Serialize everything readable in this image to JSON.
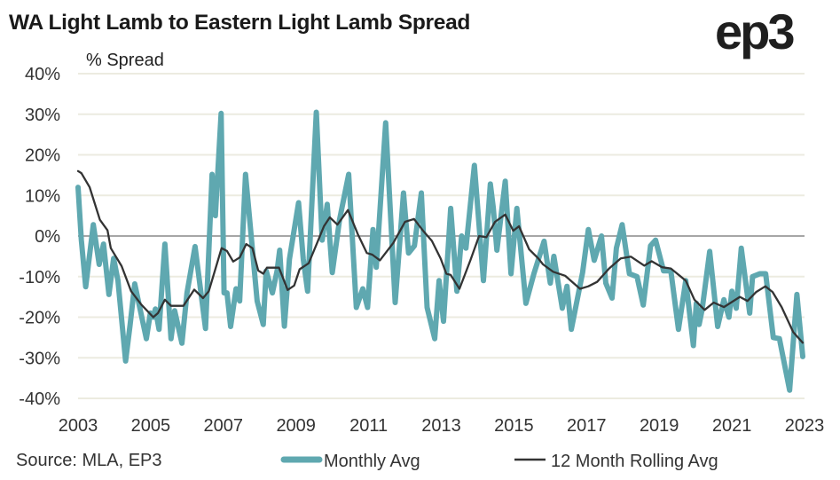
{
  "title": "WA Light Lamb to Eastern Light Lamb Spread",
  "logo": "ep3",
  "source": "Source: MLA, EP3",
  "chart_data": {
    "type": "line",
    "title": "WA Light Lamb to Eastern Light Lamb Spread",
    "ylabel": "% Spread",
    "xlabel": "",
    "xlim": [
      2003,
      2023
    ],
    "ylim": [
      -40,
      40
    ],
    "x_ticks": [
      "2003",
      "2005",
      "2007",
      "2009",
      "2011",
      "2013",
      "2015",
      "2017",
      "2019",
      "2021",
      "2023"
    ],
    "y_ticks": [
      "40%",
      "30%",
      "20%",
      "10%",
      "0%",
      "-10%",
      "-20%",
      "-30%",
      "-40%"
    ],
    "grid": true,
    "legend": "bottom",
    "colors": {
      "monthly": "#5fa8b0",
      "rolling": "#333333",
      "grid": "#ecebe0",
      "zero": "#888888"
    },
    "series": [
      {
        "name": "Monthly Avg",
        "points": [
          [
            2003.0,
            12
          ],
          [
            2003.09,
            -1
          ],
          [
            2003.21,
            -12.5
          ],
          [
            2003.42,
            2.8
          ],
          [
            2003.58,
            -7
          ],
          [
            2003.7,
            -2
          ],
          [
            2003.85,
            -14.4
          ],
          [
            2003.98,
            -5.5
          ],
          [
            2004.1,
            -11
          ],
          [
            2004.31,
            -30.8
          ],
          [
            2004.43,
            -22
          ],
          [
            2004.56,
            -11.8
          ],
          [
            2004.88,
            -25.3
          ],
          [
            2004.99,
            -19
          ],
          [
            2005.07,
            -20
          ],
          [
            2005.13,
            -18
          ],
          [
            2005.23,
            -23
          ],
          [
            2005.39,
            -2
          ],
          [
            2005.56,
            -25.3
          ],
          [
            2005.66,
            -18.4
          ],
          [
            2005.86,
            -26.4
          ],
          [
            2006.0,
            -14
          ],
          [
            2006.22,
            -2.6
          ],
          [
            2006.51,
            -22.8
          ],
          [
            2006.69,
            15.2
          ],
          [
            2006.78,
            5
          ],
          [
            2006.94,
            30.2
          ],
          [
            2007.02,
            -14
          ],
          [
            2007.1,
            -14
          ],
          [
            2007.2,
            -22.3
          ],
          [
            2007.35,
            -13
          ],
          [
            2007.45,
            -16
          ],
          [
            2007.61,
            15.2
          ],
          [
            2007.93,
            -16
          ],
          [
            2008.1,
            -21.8
          ],
          [
            2008.18,
            -8.6
          ],
          [
            2008.35,
            -14
          ],
          [
            2008.48,
            -8.6
          ],
          [
            2008.55,
            -3.5
          ],
          [
            2008.68,
            -22.2
          ],
          [
            2008.82,
            -5.7
          ],
          [
            2009.07,
            8.2
          ],
          [
            2009.2,
            -5.7
          ],
          [
            2009.32,
            -13.6
          ],
          [
            2009.56,
            30.5
          ],
          [
            2009.72,
            -1
          ],
          [
            2009.86,
            7.8
          ],
          [
            2010.0,
            -9
          ],
          [
            2010.2,
            4
          ],
          [
            2010.45,
            15.2
          ],
          [
            2010.66,
            -17.6
          ],
          [
            2010.84,
            -13
          ],
          [
            2010.97,
            -17.6
          ],
          [
            2011.12,
            1.6
          ],
          [
            2011.21,
            -7.7
          ],
          [
            2011.47,
            27.9
          ],
          [
            2011.73,
            -16.4
          ],
          [
            2011.96,
            10.6
          ],
          [
            2012.1,
            -4.2
          ],
          [
            2012.26,
            -2.4
          ],
          [
            2012.45,
            10.6
          ],
          [
            2012.61,
            -17.6
          ],
          [
            2012.82,
            -25.3
          ],
          [
            2012.94,
            -11
          ],
          [
            2013.06,
            -21
          ],
          [
            2013.26,
            6.8
          ],
          [
            2013.43,
            -13.6
          ],
          [
            2013.56,
            0
          ],
          [
            2013.68,
            -3
          ],
          [
            2013.91,
            17.4
          ],
          [
            2014.16,
            -11
          ],
          [
            2014.35,
            12.8
          ],
          [
            2014.43,
            7
          ],
          [
            2014.53,
            -3.5
          ],
          [
            2014.76,
            13.5
          ],
          [
            2014.92,
            -9.3
          ],
          [
            2015.08,
            6.8
          ],
          [
            2015.33,
            -16.6
          ],
          [
            2015.55,
            -9.3
          ],
          [
            2015.83,
            -1.3
          ],
          [
            2016.0,
            -11.6
          ],
          [
            2016.1,
            -5
          ],
          [
            2016.33,
            -17.8
          ],
          [
            2016.46,
            -12.4
          ],
          [
            2016.58,
            -23
          ],
          [
            2016.89,
            -9
          ],
          [
            2017.05,
            1.6
          ],
          [
            2017.21,
            -6
          ],
          [
            2017.41,
            0
          ],
          [
            2017.53,
            -11.6
          ],
          [
            2017.7,
            -15.3
          ],
          [
            2017.82,
            -3
          ],
          [
            2017.98,
            2.8
          ],
          [
            2018.18,
            -9.3
          ],
          [
            2018.39,
            -10
          ],
          [
            2018.56,
            -17
          ],
          [
            2018.76,
            -2.4
          ],
          [
            2018.9,
            -1
          ],
          [
            2019.12,
            -8.6
          ],
          [
            2019.32,
            -8.6
          ],
          [
            2019.53,
            -23
          ],
          [
            2019.73,
            -11
          ],
          [
            2019.94,
            -27
          ],
          [
            2020.02,
            -16.6
          ],
          [
            2020.1,
            -21.8
          ],
          [
            2020.18,
            -18.2
          ],
          [
            2020.39,
            -3.8
          ],
          [
            2020.61,
            -22.3
          ],
          [
            2020.78,
            -15.7
          ],
          [
            2020.92,
            -20
          ],
          [
            2021.0,
            -13.6
          ],
          [
            2021.12,
            -17.8
          ],
          [
            2021.26,
            -3
          ],
          [
            2021.49,
            -19
          ],
          [
            2021.57,
            -10
          ],
          [
            2021.77,
            -9.3
          ],
          [
            2021.93,
            -9.3
          ],
          [
            2022.14,
            -25
          ],
          [
            2022.31,
            -25.3
          ],
          [
            2022.59,
            -38
          ],
          [
            2022.79,
            -14.4
          ],
          [
            2022.95,
            -29.7
          ]
        ]
      },
      {
        "name": "12 Month Rolling Avg",
        "points": [
          [
            2003.0,
            16
          ],
          [
            2003.09,
            15.5
          ],
          [
            2003.32,
            12
          ],
          [
            2003.6,
            4
          ],
          [
            2003.81,
            1.4
          ],
          [
            2003.9,
            -3
          ],
          [
            2004.2,
            -7.4
          ],
          [
            2004.46,
            -13.6
          ],
          [
            2004.74,
            -16.9
          ],
          [
            2005.07,
            -20
          ],
          [
            2005.2,
            -19
          ],
          [
            2005.39,
            -15.7
          ],
          [
            2005.56,
            -17.2
          ],
          [
            2005.9,
            -17.2
          ],
          [
            2006.2,
            -13.2
          ],
          [
            2006.44,
            -15.3
          ],
          [
            2006.6,
            -13.6
          ],
          [
            2006.95,
            -3
          ],
          [
            2007.1,
            -3.7
          ],
          [
            2007.27,
            -6.3
          ],
          [
            2007.45,
            -5.3
          ],
          [
            2007.63,
            -2
          ],
          [
            2007.8,
            -3
          ],
          [
            2007.96,
            -8.5
          ],
          [
            2008.1,
            -9.3
          ],
          [
            2008.2,
            -7.8
          ],
          [
            2008.53,
            -7.8
          ],
          [
            2008.77,
            -13.3
          ],
          [
            2008.95,
            -12.2
          ],
          [
            2009.1,
            -8.2
          ],
          [
            2009.35,
            -6.7
          ],
          [
            2009.57,
            -2
          ],
          [
            2009.77,
            2.4
          ],
          [
            2009.93,
            4.6
          ],
          [
            2010.14,
            2.8
          ],
          [
            2010.43,
            6.4
          ],
          [
            2010.7,
            0.5
          ],
          [
            2010.95,
            -4.2
          ],
          [
            2011.1,
            -4.6
          ],
          [
            2011.31,
            -6
          ],
          [
            2011.68,
            -1.7
          ],
          [
            2012.0,
            3.5
          ],
          [
            2012.25,
            4.2
          ],
          [
            2012.5,
            1.3
          ],
          [
            2012.74,
            -1.2
          ],
          [
            2012.98,
            -5.5
          ],
          [
            2013.14,
            -9.3
          ],
          [
            2013.26,
            -9.6
          ],
          [
            2013.5,
            -13
          ],
          [
            2013.8,
            -6
          ],
          [
            2014.04,
            0
          ],
          [
            2014.24,
            -0.3
          ],
          [
            2014.48,
            3.5
          ],
          [
            2014.76,
            5.3
          ],
          [
            2014.98,
            1.3
          ],
          [
            2015.14,
            2.4
          ],
          [
            2015.42,
            -3.3
          ],
          [
            2015.67,
            -5.5
          ],
          [
            2015.8,
            -7
          ],
          [
            2016.08,
            -8.8
          ],
          [
            2016.41,
            -9.8
          ],
          [
            2016.82,
            -13
          ],
          [
            2017.05,
            -12.4
          ],
          [
            2017.29,
            -11.3
          ],
          [
            2017.62,
            -8
          ],
          [
            2017.94,
            -5.5
          ],
          [
            2018.22,
            -5.1
          ],
          [
            2018.59,
            -7.3
          ],
          [
            2018.79,
            -6.2
          ],
          [
            2019.08,
            -7.7
          ],
          [
            2019.32,
            -8
          ],
          [
            2019.73,
            -11
          ],
          [
            2019.97,
            -15.7
          ],
          [
            2020.25,
            -18.2
          ],
          [
            2020.5,
            -16.4
          ],
          [
            2020.78,
            -17.5
          ],
          [
            2021.22,
            -15
          ],
          [
            2021.43,
            -16
          ],
          [
            2021.67,
            -13.8
          ],
          [
            2021.92,
            -12.4
          ],
          [
            2022.12,
            -13.8
          ],
          [
            2022.37,
            -17.5
          ],
          [
            2022.69,
            -23.7
          ],
          [
            2022.95,
            -26.3
          ]
        ]
      }
    ]
  }
}
